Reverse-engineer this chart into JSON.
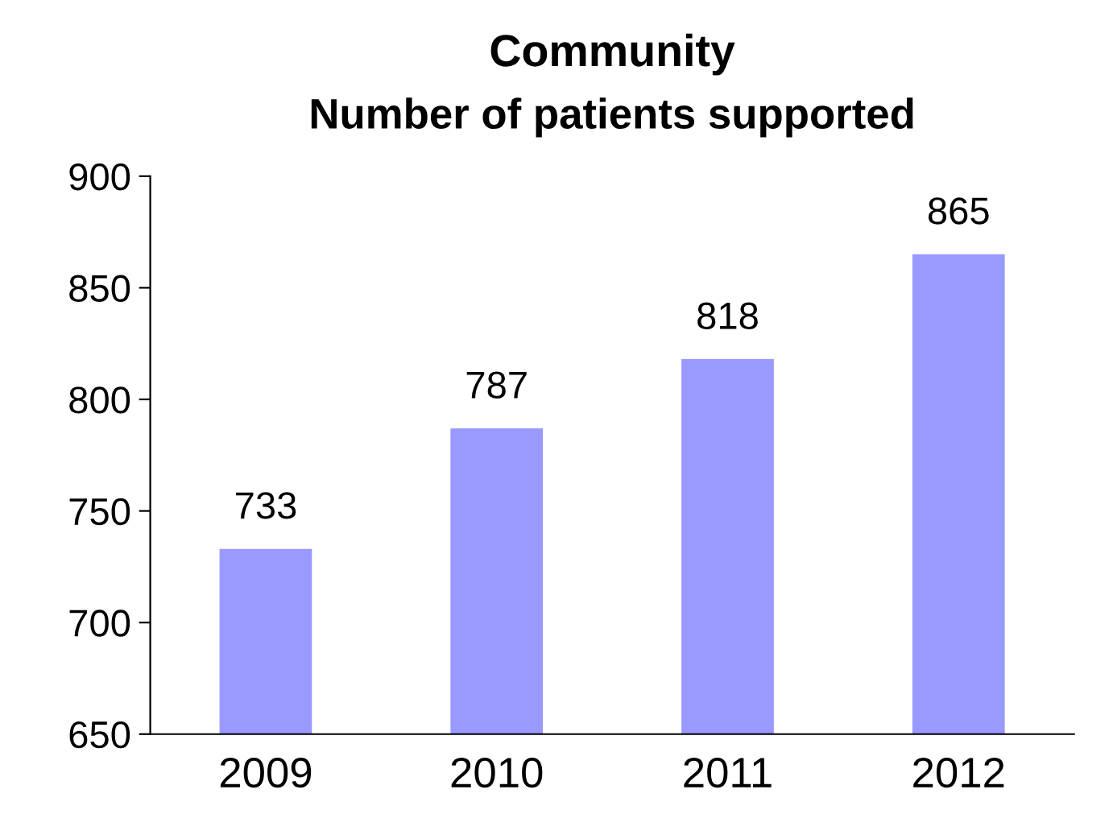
{
  "chart_data": {
    "type": "bar",
    "title": "Community",
    "subtitle": "Number of patients supported",
    "categories": [
      "2009",
      "2010",
      "2011",
      "2012"
    ],
    "values": [
      733,
      787,
      818,
      865
    ],
    "color": "#9999ff",
    "ylim": [
      650,
      900
    ],
    "yticks": [
      650,
      700,
      750,
      800,
      850,
      900
    ],
    "grid": false,
    "data_labels": true
  }
}
